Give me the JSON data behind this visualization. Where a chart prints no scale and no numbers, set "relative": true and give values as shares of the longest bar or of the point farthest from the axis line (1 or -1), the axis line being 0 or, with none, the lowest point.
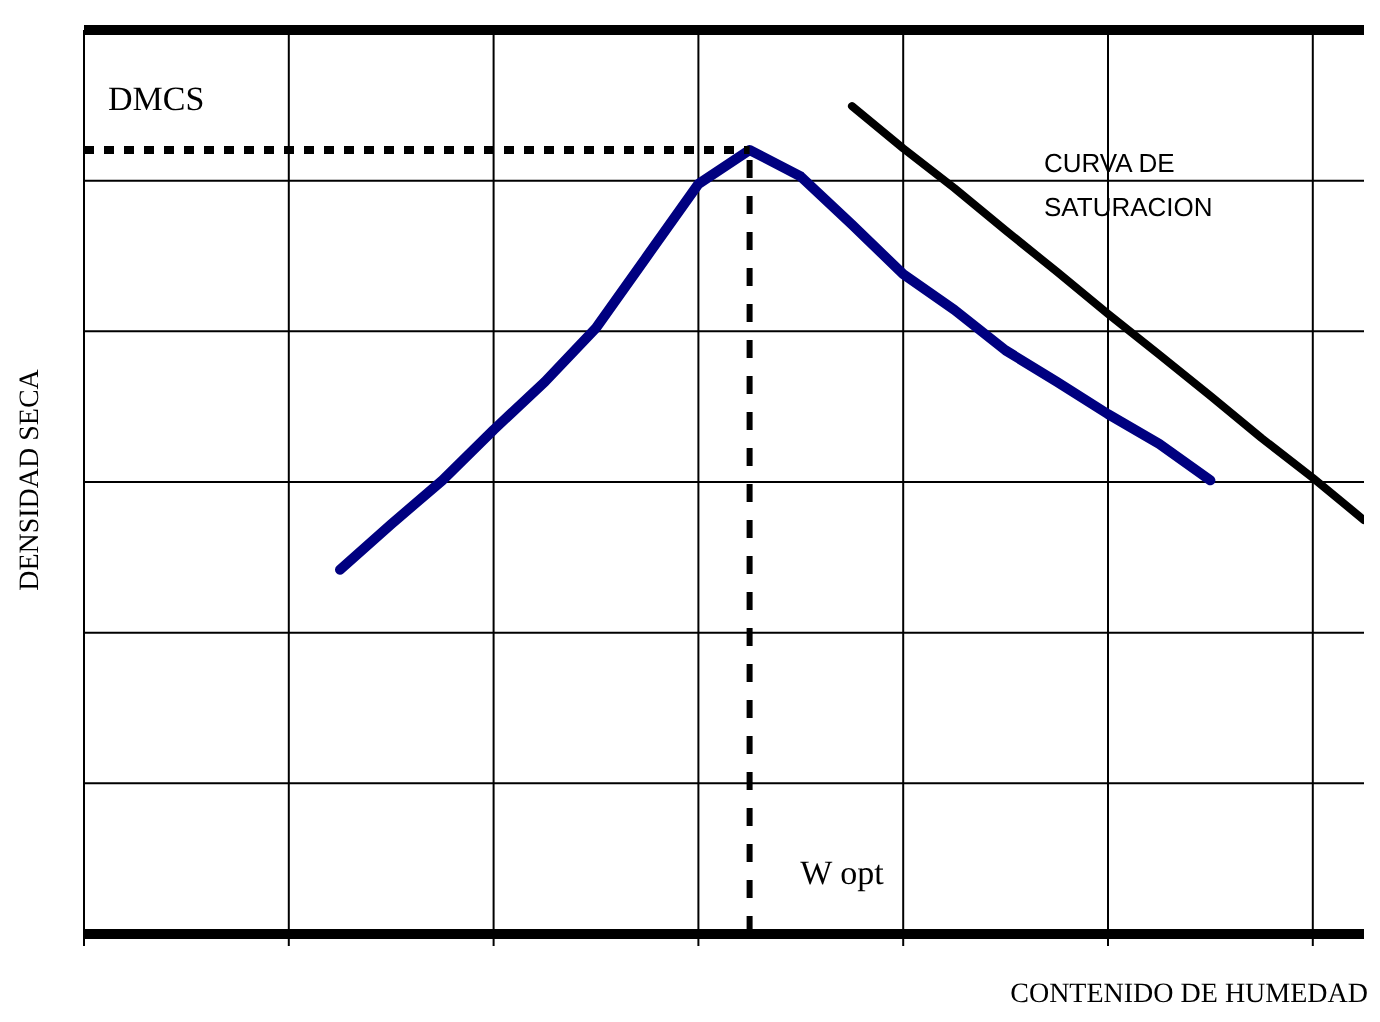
{
  "chart_data": {
    "type": "line",
    "relative": true,
    "xlabel": "CONTENIDO DE HUMEDAD",
    "ylabel": "DENSIDAD SECA",
    "categories": [
      null,
      null,
      null,
      null,
      null,
      null,
      null,
      null,
      null,
      null,
      null,
      null,
      null,
      null,
      null,
      null,
      null,
      null,
      null,
      null,
      null,
      null,
      null,
      null,
      null,
      null
    ],
    "grid": true,
    "legend": false,
    "marker": "none",
    "line_style": "solid",
    "series": [
      {
        "color": "#000080",
        "values": [
          null,
          null,
          null,
          null,
          null,
          0.44,
          0.495,
          0.548,
          0.609,
          0.667,
          0.732,
          0.819,
          0.906,
          0.947,
          0.915,
          0.857,
          0.797,
          0.754,
          0.705,
          0.667,
          0.628,
          0.592,
          0.548,
          null,
          null,
          null
        ]
      },
      {
        "name": "CURVA DE SATURACION",
        "color": "#000000",
        "values": [
          null,
          null,
          null,
          null,
          null,
          null,
          null,
          null,
          null,
          null,
          null,
          null,
          null,
          null,
          null,
          1.0,
          0.949,
          0.901,
          0.85,
          0.8,
          0.749,
          0.7,
          0.65,
          0.599,
          0.551,
          0.5
        ]
      }
    ],
    "ref_lines": [
      {
        "axis": "y",
        "value": 0.947,
        "label": "DMCS",
        "line_style": "dotted",
        "color": "#000000"
      }
    ],
    "annotations": [
      "W opt"
    ]
  }
}
